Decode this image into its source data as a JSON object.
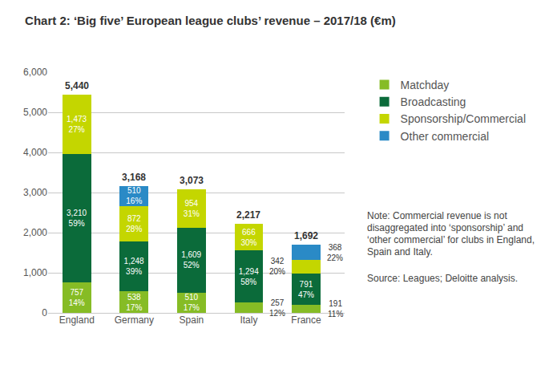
{
  "chart_data": {
    "type": "bar",
    "title": "Chart 2: ‘Big five’ European league clubs’ revenue – 2017/18 (€m)",
    "categories": [
      "England",
      "Germany",
      "Spain",
      "Italy",
      "France"
    ],
    "stacked": true,
    "data_labels": true,
    "grid": true,
    "legend": "right",
    "ylim": [
      0,
      6000
    ],
    "yticks": [
      0,
      {
        "value": 1000,
        "label": "1,000"
      },
      {
        "value": 2000,
        "label": "2,000"
      },
      {
        "value": 3000,
        "label": "3,000"
      },
      {
        "value": 4000,
        "label": "4,000"
      },
      {
        "value": 5000,
        "label": "5,000"
      },
      {
        "value": 6000,
        "label": "6,000"
      }
    ],
    "series": [
      {
        "name": "Matchday",
        "color": "#86bc25",
        "values": [
          757,
          538,
          510,
          257,
          191
        ],
        "value_labels": [
          "757",
          "538",
          "510",
          "257",
          "191"
        ],
        "shares": [
          14,
          17,
          17,
          12,
          11
        ],
        "share_labels": [
          "14%",
          "17%",
          "17%",
          "12%",
          "11%"
        ]
      },
      {
        "name": "Broadcasting",
        "color": "#0b6b3a",
        "values": [
          3210,
          1248,
          1609,
          1294,
          791
        ],
        "value_labels": [
          "3,210",
          "1,248",
          "1,609",
          "1,294",
          "791"
        ],
        "shares": [
          59,
          39,
          52,
          58,
          47
        ],
        "share_labels": [
          "59%",
          "39%",
          "52%",
          "58%",
          "47%"
        ]
      },
      {
        "name": "Sponsorship/Commercial",
        "color": "#c4d600",
        "values": [
          1473,
          872,
          954,
          666,
          342
        ],
        "value_labels": [
          "1,473",
          "872",
          "954",
          "666",
          "342"
        ],
        "shares": [
          27,
          28,
          31,
          30,
          20
        ],
        "share_labels": [
          "27%",
          "28%",
          "31%",
          "30%",
          "20%"
        ]
      },
      {
        "name": "Other commercial",
        "color": "#2a8ac6",
        "values": [
          null,
          510,
          null,
          null,
          368
        ],
        "value_labels": [
          null,
          "510",
          null,
          null,
          "368"
        ],
        "shares": [
          null,
          16,
          null,
          null,
          22
        ],
        "share_labels": [
          null,
          "16%",
          null,
          null,
          "22%"
        ]
      }
    ],
    "totals": [
      5440,
      3168,
      3073,
      2217,
      1692
    ],
    "total_labels": [
      "5,440",
      "3,168",
      "3,073",
      "2,217",
      "1,692"
    ],
    "note": "Note: Commercial revenue is not disaggregated into ‘sponsorship’ and ‘other commercial’ for clubs in England, Spain and Italy.",
    "source": "Source: Leagues; Deloitte analysis."
  }
}
